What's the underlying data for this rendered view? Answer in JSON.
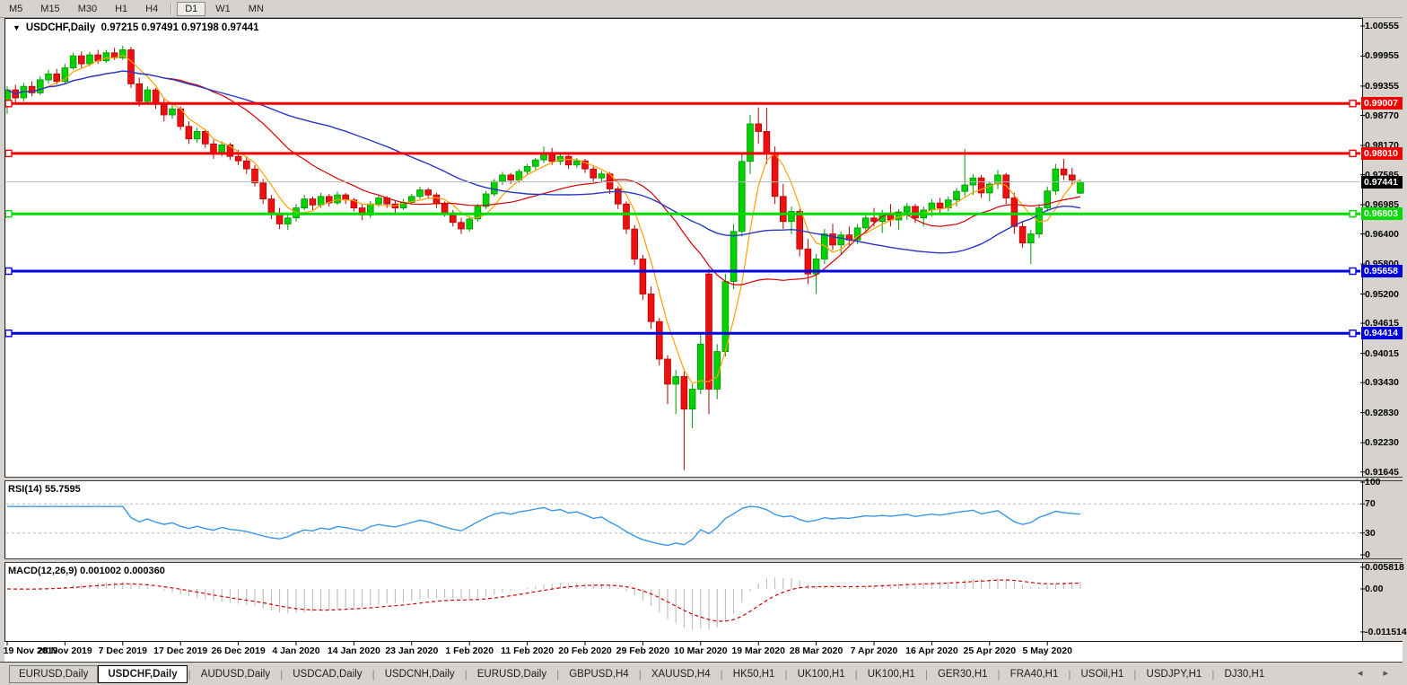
{
  "toolbar": {
    "timeframes": [
      "M5",
      "M15",
      "M30",
      "H1",
      "H4",
      "D1",
      "W1",
      "MN"
    ],
    "active_timeframe": "D1",
    "separator_after": "H4"
  },
  "chart": {
    "title_symbol": "USDCHF,Daily",
    "title_ohlc": "0.97215 0.97491 0.97198 0.97441",
    "collapse_icon": "▼"
  },
  "rsi": {
    "label": "RSI(14) 55.7595",
    "period": 14,
    "value": 55.7595,
    "ticks": [
      100,
      70,
      30,
      0
    ],
    "dashed_levels": [
      70,
      30
    ],
    "line_color": "#3a96e8"
  },
  "macd": {
    "label": "MACD(12,26,9) 0.001002 0.000360",
    "params": [
      12,
      26,
      9
    ],
    "macd_value": 0.001002,
    "signal_value": 0.00036,
    "ticks": [
      {
        "label": "0.005818",
        "v": 0.005818
      },
      {
        "label": "0.00",
        "v": 0.0
      },
      {
        "label": "-0.011514",
        "v": -0.011514
      }
    ],
    "hist_color": "#b4b4b4",
    "signal_color": "#d40000"
  },
  "date_axis": {
    "labels": [
      "19 Nov 2019",
      "28 Nov 2019",
      "7 Dec 2019",
      "17 Dec 2019",
      "26 Dec 2019",
      "4 Jan 2020",
      "14 Jan 2020",
      "23 Jan 2020",
      "1 Feb 2020",
      "11 Feb 2020",
      "20 Feb 2020",
      "29 Feb 2020",
      "10 Mar 2020",
      "19 Mar 2020",
      "28 Mar 2020",
      "7 Apr 2020",
      "16 Apr 2020",
      "25 Apr 2020",
      "5 May 2020"
    ],
    "tick_candle_indices": [
      0,
      7,
      14,
      21,
      28,
      35,
      42,
      49,
      56,
      63,
      70,
      77,
      84,
      91,
      98,
      105,
      112,
      119,
      126
    ]
  },
  "tabs": {
    "items": [
      "EURUSD,Daily",
      "USDCHF,Daily",
      "AUDUSD,Daily",
      "USDCAD,Daily",
      "USDCNH,Daily",
      "EURUSD,Daily",
      "GBPUSD,H4",
      "XAUUSD,H4",
      "HK50,H1",
      "UK100,H1",
      "UK100,H1",
      "GER30,H1",
      "FRA40,H1",
      "USOil,H1",
      "USDJPY,H1",
      "DJ30,H1"
    ],
    "active_index": 1,
    "scroll_arrows": "◂ ▸"
  },
  "colors": {
    "bull": "#00d200",
    "bull_edge": "#009600",
    "bear": "#ee1010",
    "bear_edge": "#b40000",
    "ma_fast": "#ffa000",
    "ma_mid": "#d80000",
    "ma_slow": "#2739c4",
    "hline_red": "#f40000",
    "hline_green": "#00dc00",
    "hline_blue": "#0000e0",
    "current_line": "#b4b4b4",
    "current_badge": "#000000"
  },
  "chart_data": {
    "type": "candlestick",
    "symbol": "USDCHF",
    "timeframe": "Daily",
    "last_ohlc": {
      "open": 0.97215,
      "high": 0.97491,
      "low": 0.97198,
      "close": 0.97441
    },
    "ylim": [
      0.91645,
      1.00555
    ],
    "y_ticks": [
      "1.00555",
      "0.99955",
      "0.99355",
      "0.98770",
      "0.98170",
      "0.97585",
      "0.96985",
      "0.96400",
      "0.95800",
      "0.95200",
      "0.94615",
      "0.94015",
      "0.93430",
      "0.92830",
      "0.92230",
      "0.91645"
    ],
    "y_tick_values": [
      1.00555,
      0.99955,
      0.99355,
      0.9877,
      0.9817,
      0.97585,
      0.96985,
      0.964,
      0.958,
      0.952,
      0.94615,
      0.94015,
      0.9343,
      0.9283,
      0.9223,
      0.91645
    ],
    "horizontal_lines": [
      {
        "price": 0.99007,
        "label": "0.99007",
        "color_key": "hline_red"
      },
      {
        "price": 0.9801,
        "label": "0.98010",
        "color_key": "hline_red"
      },
      {
        "price": 0.96803,
        "label": "0.96803",
        "color_key": "hline_green"
      },
      {
        "price": 0.95658,
        "label": "0.95658",
        "color_key": "hline_blue"
      },
      {
        "price": 0.94414,
        "label": "0.94414",
        "color_key": "hline_blue"
      }
    ],
    "current_price": {
      "value": 0.97441,
      "label": "0.97441"
    },
    "moving_averages": [
      {
        "name": "fast",
        "period": 5,
        "color_key": "ma_fast"
      },
      {
        "name": "mid",
        "period": 20,
        "color_key": "ma_mid"
      },
      {
        "name": "slow",
        "period": 40,
        "color_key": "ma_slow"
      }
    ],
    "candles": [
      [
        0.9896,
        0.9935,
        0.988,
        0.9928
      ],
      [
        0.9928,
        0.9938,
        0.99,
        0.9912
      ],
      [
        0.9912,
        0.9942,
        0.9905,
        0.9935
      ],
      [
        0.9935,
        0.9945,
        0.9915,
        0.9922
      ],
      [
        0.9922,
        0.9955,
        0.9918,
        0.9948
      ],
      [
        0.9948,
        0.9968,
        0.994,
        0.996
      ],
      [
        0.996,
        0.997,
        0.9938,
        0.9945
      ],
      [
        0.9945,
        0.998,
        0.994,
        0.9972
      ],
      [
        0.9972,
        1.0002,
        0.9968,
        0.9996
      ],
      [
        0.9996,
        1.0005,
        0.9972,
        0.998
      ],
      [
        0.998,
        1.0004,
        0.9975,
        0.9998
      ],
      [
        0.9998,
        1.0008,
        0.998,
        0.9986
      ],
      [
        0.9986,
        1.0008,
        0.9982,
        1.0002
      ],
      [
        1.0002,
        1.0012,
        0.9988,
        0.9992
      ],
      [
        0.9992,
        1.0016,
        0.9988,
        1.0008
      ],
      [
        1.0008,
        1.0014,
        0.9932,
        0.994
      ],
      [
        0.994,
        0.9952,
        0.9895,
        0.9905
      ],
      [
        0.9905,
        0.9935,
        0.9898,
        0.9928
      ],
      [
        0.9928,
        0.9932,
        0.989,
        0.99
      ],
      [
        0.99,
        0.9912,
        0.9865,
        0.9878
      ],
      [
        0.9878,
        0.9898,
        0.987,
        0.989
      ],
      [
        0.989,
        0.9895,
        0.9848,
        0.9855
      ],
      [
        0.9855,
        0.9865,
        0.982,
        0.983
      ],
      [
        0.983,
        0.9852,
        0.9822,
        0.9845
      ],
      [
        0.9845,
        0.985,
        0.9812,
        0.982
      ],
      [
        0.982,
        0.9828,
        0.979,
        0.98
      ],
      [
        0.98,
        0.9825,
        0.9795,
        0.9818
      ],
      [
        0.9818,
        0.9822,
        0.9788,
        0.9795
      ],
      [
        0.9795,
        0.9808,
        0.9778,
        0.9786
      ],
      [
        0.9786,
        0.9795,
        0.976,
        0.977
      ],
      [
        0.977,
        0.9778,
        0.9735,
        0.9742
      ],
      [
        0.9742,
        0.975,
        0.97,
        0.971
      ],
      [
        0.971,
        0.9718,
        0.967,
        0.968
      ],
      [
        0.968,
        0.9692,
        0.965,
        0.966
      ],
      [
        0.966,
        0.968,
        0.9648,
        0.9672
      ],
      [
        0.9672,
        0.97,
        0.9665,
        0.9692
      ],
      [
        0.9692,
        0.9718,
        0.9688,
        0.971
      ],
      [
        0.971,
        0.9715,
        0.9688,
        0.9698
      ],
      [
        0.9698,
        0.9722,
        0.9692,
        0.9715
      ],
      [
        0.9715,
        0.972,
        0.9695,
        0.9702
      ],
      [
        0.9702,
        0.9725,
        0.9698,
        0.9718
      ],
      [
        0.9718,
        0.9722,
        0.97,
        0.9708
      ],
      [
        0.9708,
        0.9712,
        0.9685,
        0.9692
      ],
      [
        0.9692,
        0.97,
        0.9668,
        0.9678
      ],
      [
        0.9678,
        0.9706,
        0.9672,
        0.97
      ],
      [
        0.97,
        0.9718,
        0.9694,
        0.9712
      ],
      [
        0.9712,
        0.9716,
        0.9692,
        0.97
      ],
      [
        0.97,
        0.9706,
        0.9682,
        0.9692
      ],
      [
        0.9692,
        0.971,
        0.9688,
        0.9703
      ],
      [
        0.9703,
        0.972,
        0.9698,
        0.9715
      ],
      [
        0.9715,
        0.9734,
        0.971,
        0.9728
      ],
      [
        0.9728,
        0.9732,
        0.971,
        0.9718
      ],
      [
        0.9718,
        0.9722,
        0.9692,
        0.97
      ],
      [
        0.97,
        0.9705,
        0.9675,
        0.9682
      ],
      [
        0.9682,
        0.9688,
        0.9655,
        0.9663
      ],
      [
        0.9663,
        0.9672,
        0.964,
        0.965
      ],
      [
        0.965,
        0.9676,
        0.9645,
        0.967
      ],
      [
        0.967,
        0.97,
        0.9665,
        0.9695
      ],
      [
        0.9695,
        0.9726,
        0.969,
        0.972
      ],
      [
        0.972,
        0.975,
        0.9715,
        0.9745
      ],
      [
        0.9745,
        0.9764,
        0.9738,
        0.9758
      ],
      [
        0.9758,
        0.9762,
        0.974,
        0.9748
      ],
      [
        0.9748,
        0.977,
        0.9742,
        0.9765
      ],
      [
        0.9765,
        0.978,
        0.9758,
        0.9775
      ],
      [
        0.9775,
        0.9792,
        0.9768,
        0.9788
      ],
      [
        0.9788,
        0.9815,
        0.9782,
        0.98
      ],
      [
        0.98,
        0.9812,
        0.9778,
        0.9785
      ],
      [
        0.9785,
        0.98,
        0.9778,
        0.9795
      ],
      [
        0.9795,
        0.9798,
        0.977,
        0.9778
      ],
      [
        0.9778,
        0.9792,
        0.9772,
        0.9786
      ],
      [
        0.9786,
        0.979,
        0.9762,
        0.977
      ],
      [
        0.977,
        0.9775,
        0.9744,
        0.9752
      ],
      [
        0.9752,
        0.9766,
        0.9745,
        0.976
      ],
      [
        0.976,
        0.9764,
        0.972,
        0.973
      ],
      [
        0.973,
        0.9735,
        0.969,
        0.97
      ],
      [
        0.97,
        0.9705,
        0.964,
        0.965
      ],
      [
        0.965,
        0.9658,
        0.9578,
        0.959
      ],
      [
        0.959,
        0.9598,
        0.9508,
        0.952
      ],
      [
        0.952,
        0.9535,
        0.945,
        0.9465
      ],
      [
        0.9465,
        0.9472,
        0.9378,
        0.939
      ],
      [
        0.939,
        0.9398,
        0.93,
        0.934
      ],
      [
        0.934,
        0.9368,
        0.928,
        0.9355
      ],
      [
        0.9355,
        0.9365,
        0.9168,
        0.929
      ],
      [
        0.929,
        0.934,
        0.9252,
        0.933
      ],
      [
        0.933,
        0.944,
        0.932,
        0.942
      ],
      [
        0.956,
        0.957,
        0.928,
        0.933
      ],
      [
        0.933,
        0.942,
        0.931,
        0.9405
      ],
      [
        0.9405,
        0.956,
        0.9395,
        0.9545
      ],
      [
        0.9545,
        0.966,
        0.953,
        0.9645
      ],
      [
        0.9645,
        0.98,
        0.9635,
        0.9785
      ],
      [
        0.9785,
        0.9878,
        0.976,
        0.986
      ],
      [
        0.986,
        0.9893,
        0.982,
        0.9845
      ],
      [
        0.9845,
        0.9892,
        0.978,
        0.98
      ],
      [
        0.98,
        0.9815,
        0.97,
        0.9715
      ],
      [
        0.9715,
        0.974,
        0.965,
        0.9665
      ],
      [
        0.9665,
        0.9695,
        0.964,
        0.9685
      ],
      [
        0.9685,
        0.969,
        0.9595,
        0.961
      ],
      [
        0.961,
        0.963,
        0.954,
        0.956
      ],
      [
        0.956,
        0.96,
        0.952,
        0.959
      ],
      [
        0.959,
        0.965,
        0.958,
        0.964
      ],
      [
        0.964,
        0.966,
        0.9608,
        0.9618
      ],
      [
        0.9618,
        0.9645,
        0.96,
        0.9638
      ],
      [
        0.9638,
        0.9655,
        0.9618,
        0.9628
      ],
      [
        0.9628,
        0.966,
        0.962,
        0.9652
      ],
      [
        0.9652,
        0.968,
        0.964,
        0.9672
      ],
      [
        0.9672,
        0.9692,
        0.9655,
        0.9665
      ],
      [
        0.9665,
        0.9688,
        0.9642,
        0.968
      ],
      [
        0.968,
        0.97,
        0.9655,
        0.9668
      ],
      [
        0.9668,
        0.969,
        0.9648,
        0.9684
      ],
      [
        0.9684,
        0.9702,
        0.9668,
        0.9695
      ],
      [
        0.9695,
        0.97,
        0.9662,
        0.9672
      ],
      [
        0.9672,
        0.9695,
        0.9655,
        0.9688
      ],
      [
        0.9688,
        0.971,
        0.9675,
        0.9702
      ],
      [
        0.9702,
        0.9712,
        0.968,
        0.9692
      ],
      [
        0.9692,
        0.9715,
        0.9685,
        0.9708
      ],
      [
        0.9708,
        0.9732,
        0.9695,
        0.9725
      ],
      [
        0.9725,
        0.981,
        0.9715,
        0.9738
      ],
      [
        0.9738,
        0.976,
        0.9718,
        0.9752
      ],
      [
        0.9752,
        0.9758,
        0.9712,
        0.9722
      ],
      [
        0.9722,
        0.9745,
        0.9705,
        0.974
      ],
      [
        0.974,
        0.9768,
        0.973,
        0.9758
      ],
      [
        0.9758,
        0.9762,
        0.97,
        0.9712
      ],
      [
        0.9712,
        0.9722,
        0.964,
        0.9655
      ],
      [
        0.9655,
        0.9665,
        0.9612,
        0.9622
      ],
      [
        0.9622,
        0.9648,
        0.958,
        0.964
      ],
      [
        0.964,
        0.97,
        0.9632,
        0.9692
      ],
      [
        0.9692,
        0.9735,
        0.9685,
        0.9726
      ],
      [
        0.9726,
        0.978,
        0.9718,
        0.977
      ],
      [
        0.977,
        0.979,
        0.9748,
        0.9758
      ],
      [
        0.9758,
        0.9772,
        0.9738,
        0.9748
      ],
      [
        0.97215,
        0.97491,
        0.97198,
        0.97441
      ]
    ]
  }
}
